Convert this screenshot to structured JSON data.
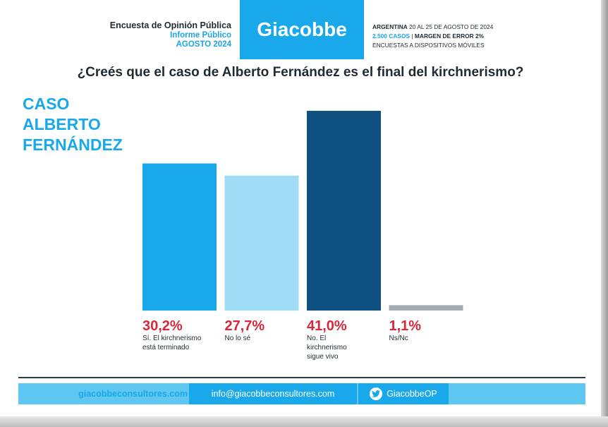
{
  "header": {
    "line1": "Encuesta de Opinión Pública",
    "line2": "Informe Público",
    "line3": "AGOSTO 2024",
    "brand": "Giacobbe",
    "country": "ARGENTINA",
    "dates": "20 AL 25 DE AGOSTO DE 2024",
    "cases": "2.500 CASOS",
    "separator": "|",
    "margin": "MARGEN DE ERROR 2%",
    "method": "ENCUESTAS A DISPOSITIVOS MÓVILES"
  },
  "question": "¿Creés que el caso de Alberto Fernández es el final del kirchnerismo?",
  "section_title": [
    "CASO",
    "ALBERTO",
    "FERNÁNDEZ"
  ],
  "chart_data": {
    "type": "bar",
    "categories": [
      "Sí. El kirchnerismo está terminado",
      "No lo sé",
      "No. El kirchnerismo sigue vivo",
      "Ns/Nc"
    ],
    "category_lines": [
      [
        "Sí. El kirchnerismo",
        "está terminado"
      ],
      [
        "No lo sé"
      ],
      [
        "No. El",
        "kirchnerismo",
        "sigue vivo"
      ],
      [
        "Ns/Nc"
      ]
    ],
    "values": [
      30.2,
      27.7,
      41.0,
      1.1
    ],
    "value_labels": [
      "30,2%",
      "27,7%",
      "41,0%",
      "1,1%"
    ],
    "bar_colors": [
      "#19a9ea",
      "#a0dcf6",
      "#0f5180",
      "#a4adb6"
    ],
    "label_color": "#d4293a",
    "ylim": [
      0,
      41.0
    ],
    "grid": false,
    "title": "",
    "xlabel": "",
    "ylabel": ""
  },
  "footer": {
    "website": "giacobbeconsultores.com",
    "email": "info@giacobbeconsultores.com",
    "twitter": "GiacobbeOP"
  },
  "colors": {
    "brand_blue": "#19a9ea",
    "footer_blue": "#5ec8f2",
    "dark_text": "#1f2a33"
  }
}
